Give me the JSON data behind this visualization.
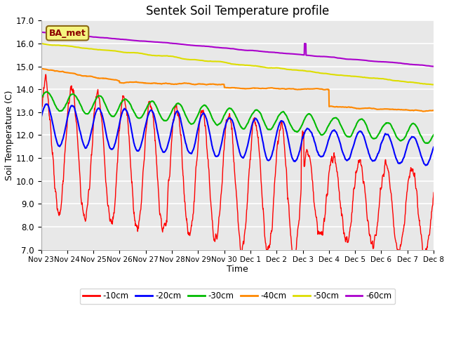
{
  "title": "Sentek Soil Temperature profile",
  "xlabel": "Time",
  "ylabel": "Soil Temperature (C)",
  "ylim": [
    7.0,
    17.0
  ],
  "yticks": [
    7.0,
    8.0,
    9.0,
    10.0,
    11.0,
    12.0,
    13.0,
    14.0,
    15.0,
    16.0,
    17.0
  ],
  "annotation_label": "BA_met",
  "annotation_color": "#8b0000",
  "annotation_bg": "#f5f580",
  "depths": [
    "-10cm",
    "-20cm",
    "-30cm",
    "-40cm",
    "-50cm",
    "-60cm"
  ],
  "colors": [
    "#ff0000",
    "#0000ff",
    "#00bb00",
    "#ff8800",
    "#dddd00",
    "#aa00cc"
  ],
  "linewidths": [
    1.0,
    1.5,
    1.5,
    1.5,
    1.5,
    1.5
  ],
  "tick_labels": [
    "Nov 23",
    "Nov 24",
    "Nov 25",
    "Nov 26",
    "Nov 27",
    "Nov 28",
    "Nov 29",
    "Nov 30",
    "Dec 1",
    "Dec 2",
    "Dec 3",
    "Dec 4",
    "Dec 5",
    "Dec 6",
    "Dec 7",
    "Dec 8"
  ],
  "plot_bg": "#e8e8e8",
  "fig_bg": "#ffffff"
}
